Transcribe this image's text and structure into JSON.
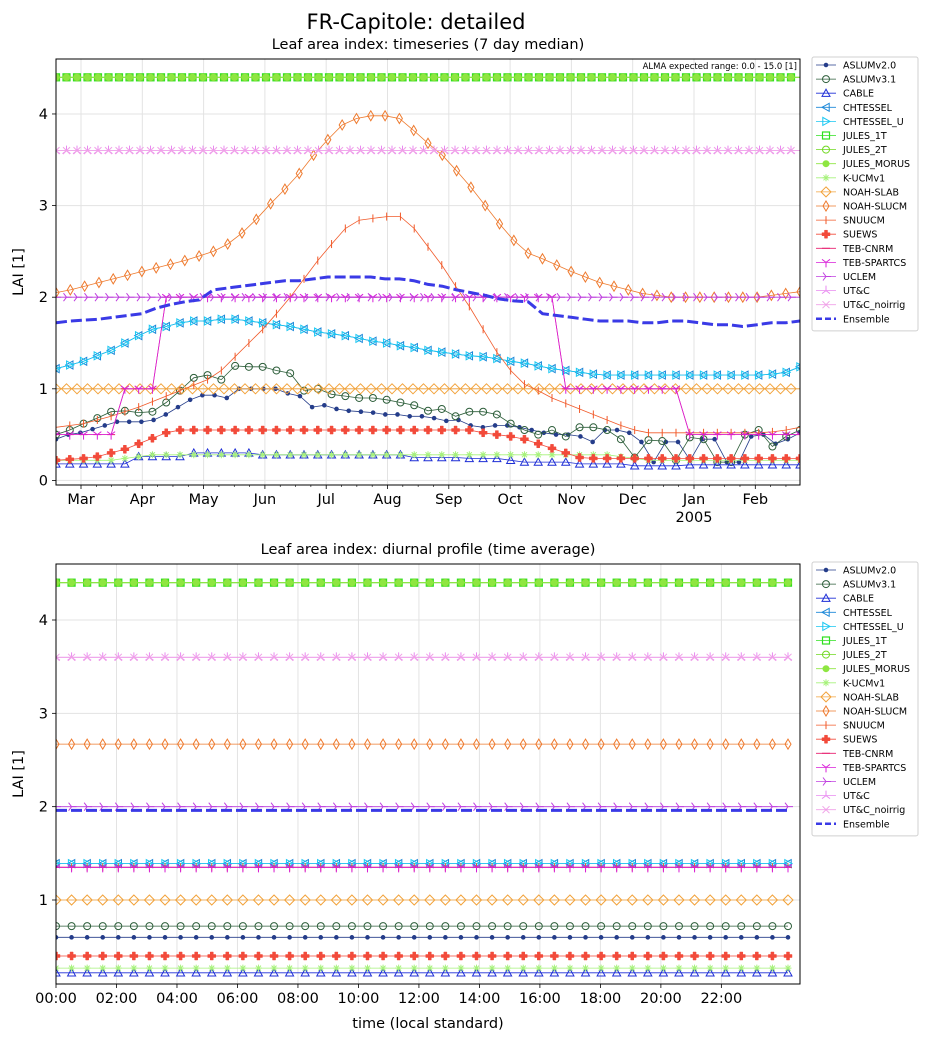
{
  "figure": {
    "suptitle": "FR-Capitole: detailed"
  },
  "chart_data": [
    {
      "type": "line",
      "title": "Leaf area index: timeseries (7 day median)",
      "ylabel": "LAI [1]",
      "xlabel": "",
      "annotation": "ALMA expected range: 0.0 - 15.0 [1]",
      "x_ticks": [
        "Mar",
        "Apr",
        "May",
        "Jun",
        "Jul",
        "Aug",
        "Sep",
        "Oct",
        "Nov",
        "Dec",
        "Jan",
        "Feb"
      ],
      "x_year_label": "2005",
      "y_ticks": [
        "0",
        "1",
        "2",
        "3",
        "4"
      ],
      "ylim": [
        -0.05,
        4.6
      ],
      "grid": true,
      "legend_position": "outside-right",
      "series": [
        {
          "name": "ASLUMv2.0",
          "color": "#253d8a",
          "marker": "dot",
          "values": [
            0.45,
            0.5,
            0.52,
            0.56,
            0.6,
            0.64,
            0.64,
            0.64,
            0.66,
            0.72,
            0.8,
            0.88,
            0.93,
            0.93,
            0.9,
            1.0,
            1.0,
            1.0,
            1.0,
            0.95,
            0.92,
            0.8,
            0.82,
            0.78,
            0.76,
            0.75,
            0.74,
            0.72,
            0.72,
            0.7,
            0.7,
            0.68,
            0.65,
            0.66,
            0.6,
            0.58,
            0.6,
            0.6,
            0.58,
            0.55,
            0.52,
            0.5,
            0.5,
            0.48,
            0.42,
            0.55,
            0.55,
            0.52,
            0.42,
            0.2,
            0.42,
            0.42,
            0.22,
            0.45,
            0.45,
            0.2,
            0.2,
            0.48,
            0.5,
            0.4,
            0.45,
            0.52
          ]
        },
        {
          "name": "ASLUMv3.1",
          "color": "#2d5e3a",
          "marker": "circle-open",
          "values": [
            0.5,
            0.55,
            0.62,
            0.68,
            0.75,
            0.76,
            0.74,
            0.75,
            0.85,
            0.98,
            1.12,
            1.15,
            1.1,
            1.25,
            1.24,
            1.24,
            1.2,
            1.17,
            0.98,
            1.0,
            0.94,
            0.92,
            0.9,
            0.9,
            0.88,
            0.85,
            0.82,
            0.76,
            0.78,
            0.7,
            0.75,
            0.75,
            0.72,
            0.62,
            0.55,
            0.5,
            0.55,
            0.48,
            0.58,
            0.58,
            0.55,
            0.45,
            0.25,
            0.44,
            0.43,
            0.22,
            0.47,
            0.45,
            0.2,
            0.2,
            0.5,
            0.55,
            0.37,
            0.48,
            0.55
          ]
        },
        {
          "name": "CABLE",
          "color": "#1f2fd6",
          "marker": "triangle-open",
          "values": [
            0.18,
            0.18,
            0.18,
            0.18,
            0.18,
            0.18,
            0.26,
            0.26,
            0.26,
            0.26,
            0.3,
            0.3,
            0.3,
            0.3,
            0.3,
            0.28,
            0.28,
            0.28,
            0.28,
            0.28,
            0.28,
            0.28,
            0.28,
            0.28,
            0.28,
            0.28,
            0.25,
            0.25,
            0.25,
            0.25,
            0.24,
            0.24,
            0.24,
            0.22,
            0.2,
            0.2,
            0.2,
            0.2,
            0.18,
            0.18,
            0.18,
            0.18,
            0.16,
            0.16,
            0.16,
            0.16,
            0.17,
            0.17,
            0.17,
            0.17,
            0.17,
            0.17,
            0.17,
            0.17,
            0.17
          ]
        },
        {
          "name": "CHTESSEL",
          "color": "#1a87d8",
          "marker": "triangle-left-open",
          "values": [
            1.22,
            1.26,
            1.3,
            1.36,
            1.42,
            1.5,
            1.58,
            1.65,
            1.68,
            1.72,
            1.74,
            1.74,
            1.76,
            1.76,
            1.74,
            1.72,
            1.7,
            1.68,
            1.65,
            1.62,
            1.6,
            1.58,
            1.55,
            1.52,
            1.5,
            1.47,
            1.45,
            1.42,
            1.4,
            1.38,
            1.36,
            1.35,
            1.33,
            1.3,
            1.28,
            1.25,
            1.22,
            1.2,
            1.18,
            1.16,
            1.15,
            1.15,
            1.15,
            1.15,
            1.15,
            1.15,
            1.15,
            1.15,
            1.15,
            1.15,
            1.15,
            1.15,
            1.16,
            1.18,
            1.24
          ]
        },
        {
          "name": "CHTESSEL_U",
          "color": "#19c7f2",
          "marker": "triangle-right-open",
          "values": [
            1.22,
            1.26,
            1.3,
            1.36,
            1.42,
            1.5,
            1.58,
            1.65,
            1.68,
            1.72,
            1.74,
            1.74,
            1.76,
            1.76,
            1.74,
            1.72,
            1.7,
            1.68,
            1.65,
            1.62,
            1.6,
            1.58,
            1.55,
            1.52,
            1.5,
            1.47,
            1.45,
            1.42,
            1.4,
            1.38,
            1.36,
            1.35,
            1.33,
            1.3,
            1.28,
            1.25,
            1.22,
            1.2,
            1.18,
            1.16,
            1.15,
            1.15,
            1.15,
            1.15,
            1.15,
            1.15,
            1.15,
            1.15,
            1.15,
            1.15,
            1.15,
            1.15,
            1.16,
            1.18,
            1.24
          ]
        },
        {
          "name": "JULES_1T",
          "color": "#2ee01f",
          "marker": "square-open",
          "values": [
            4.4,
            4.4,
            4.4,
            4.4,
            4.4,
            4.4,
            4.4,
            4.4,
            4.4,
            4.4,
            4.4,
            4.4
          ]
        },
        {
          "name": "JULES_2T",
          "color": "#6fd81f",
          "marker": "circle-open",
          "values": [
            4.4,
            4.4,
            4.4,
            4.4,
            4.4,
            4.4,
            4.4,
            4.4,
            4.4,
            4.4,
            4.4,
            4.4
          ]
        },
        {
          "name": "JULES_MORUS",
          "color": "#8ee641",
          "marker": "circle-filled",
          "values": [
            4.4,
            4.4,
            4.4,
            4.4,
            4.4,
            4.4,
            4.4,
            4.4,
            4.4,
            4.4,
            4.4,
            4.4
          ]
        },
        {
          "name": "K-UCMv1",
          "color": "#a6f27a",
          "marker": "star",
          "values": [
            0.22,
            0.22,
            0.22,
            0.22,
            0.22,
            0.24,
            0.26,
            0.28,
            0.28,
            0.28,
            0.28,
            0.28,
            0.28,
            0.28,
            0.28,
            0.28,
            0.28,
            0.28,
            0.28,
            0.28,
            0.28,
            0.28,
            0.28,
            0.28,
            0.28,
            0.28,
            0.28,
            0.28,
            0.28,
            0.28,
            0.28,
            0.28,
            0.28,
            0.28,
            0.28,
            0.28,
            0.28,
            0.28,
            0.28,
            0.28,
            0.28,
            0.26,
            0.24,
            0.22,
            0.22,
            0.22,
            0.22,
            0.22,
            0.22,
            0.22,
            0.22,
            0.22,
            0.22,
            0.22,
            0.22
          ]
        },
        {
          "name": "NOAH-SLAB",
          "color": "#f2a23a",
          "marker": "diamond-open",
          "values": [
            1.0,
            1.0,
            1.0,
            1.0,
            1.0,
            1.0,
            1.0,
            1.0,
            1.0,
            1.0,
            1.0,
            1.0
          ]
        },
        {
          "name": "NOAH-SLUCM",
          "color": "#ee7a2e",
          "marker": "thin-diamond-open",
          "values": [
            2.05,
            2.08,
            2.12,
            2.16,
            2.2,
            2.24,
            2.28,
            2.32,
            2.36,
            2.4,
            2.45,
            2.5,
            2.58,
            2.7,
            2.85,
            3.02,
            3.18,
            3.35,
            3.55,
            3.72,
            3.88,
            3.95,
            3.98,
            3.98,
            3.95,
            3.82,
            3.68,
            3.55,
            3.38,
            3.2,
            3.0,
            2.8,
            2.62,
            2.48,
            2.42,
            2.35,
            2.28,
            2.22,
            2.16,
            2.12,
            2.08,
            2.04,
            2.02,
            2.0,
            2.0,
            2.0,
            2.0,
            2.0,
            2.0,
            2.0,
            2.02,
            2.04,
            2.06
          ]
        },
        {
          "name": "SNUUCM",
          "color": "#f15a2a",
          "marker": "vline",
          "values": [
            0.58,
            0.6,
            0.62,
            0.66,
            0.7,
            0.75,
            0.8,
            0.86,
            0.92,
            0.98,
            1.04,
            1.1,
            1.2,
            1.35,
            1.5,
            1.65,
            1.82,
            2.0,
            2.2,
            2.4,
            2.58,
            2.75,
            2.84,
            2.86,
            2.88,
            2.88,
            2.75,
            2.55,
            2.35,
            2.12,
            1.9,
            1.65,
            1.4,
            1.2,
            1.05,
            0.98,
            0.9,
            0.84,
            0.78,
            0.72,
            0.66,
            0.6,
            0.55,
            0.52,
            0.52,
            0.52,
            0.52,
            0.52,
            0.52,
            0.52,
            0.52,
            0.52,
            0.53,
            0.55,
            0.58
          ]
        },
        {
          "name": "SUEWS",
          "color": "#f24a3a",
          "marker": "plus-filled",
          "values": [
            0.22,
            0.23,
            0.24,
            0.26,
            0.3,
            0.34,
            0.4,
            0.46,
            0.52,
            0.55,
            0.55,
            0.55,
            0.55,
            0.55,
            0.55,
            0.55,
            0.55,
            0.55,
            0.55,
            0.55,
            0.55,
            0.55,
            0.55,
            0.55,
            0.55,
            0.55,
            0.55,
            0.55,
            0.55,
            0.55,
            0.55,
            0.52,
            0.5,
            0.48,
            0.45,
            0.4,
            0.35,
            0.3,
            0.25,
            0.24,
            0.24,
            0.24,
            0.24,
            0.24,
            0.24,
            0.24,
            0.24,
            0.24,
            0.24,
            0.24,
            0.24,
            0.24,
            0.24,
            0.24,
            0.24
          ]
        },
        {
          "name": "TEB-CNRM",
          "color": "#e81f6f",
          "marker": "hline",
          "values": [
            0.5,
            0.5,
            0.5,
            0.5,
            0.5,
            1.0,
            1.0,
            1.0,
            2.0,
            2.0,
            2.0,
            2.0,
            2.0,
            2.0,
            2.0,
            2.0,
            2.0,
            2.0,
            2.0,
            2.0,
            2.0,
            2.0,
            2.0,
            2.0,
            2.0,
            2.0,
            2.0,
            2.0,
            2.0,
            2.0,
            2.0,
            2.0,
            2.0,
            2.0,
            2.0,
            2.0,
            2.0,
            1.0,
            1.0,
            1.0,
            1.0,
            1.0,
            1.0,
            1.0,
            1.0,
            1.0,
            0.5,
            0.5,
            0.5,
            0.5,
            0.5,
            0.5,
            0.5,
            0.5,
            0.5
          ]
        },
        {
          "name": "TEB-SPARTCS",
          "color": "#d81fd8",
          "marker": "tri-down",
          "values": [
            0.5,
            0.5,
            0.5,
            0.5,
            0.5,
            1.0,
            1.0,
            1.0,
            2.0,
            2.0,
            2.0,
            2.0,
            2.0,
            2.0,
            2.0,
            2.0,
            2.0,
            2.0,
            2.0,
            2.0,
            2.0,
            2.0,
            2.0,
            2.0,
            2.0,
            2.0,
            2.0,
            2.0,
            2.0,
            2.0,
            2.0,
            2.0,
            2.0,
            2.0,
            2.0,
            2.0,
            2.0,
            1.0,
            1.0,
            1.0,
            1.0,
            1.0,
            1.0,
            1.0,
            1.0,
            1.0,
            0.5,
            0.5,
            0.5,
            0.5,
            0.5,
            0.5,
            0.5,
            0.5,
            0.5
          ]
        },
        {
          "name": "UCLEM",
          "color": "#c040e0",
          "marker": "tri-right",
          "values": [
            2.0,
            2.0,
            2.0,
            2.0,
            2.0,
            2.0,
            2.0,
            2.0,
            2.0,
            2.0,
            2.0,
            2.0
          ]
        },
        {
          "name": "UT&C",
          "color": "#e88af0",
          "marker": "tri-up",
          "values": [
            3.6,
            3.6,
            3.6,
            3.6,
            3.6,
            3.6,
            3.6,
            3.6,
            3.6,
            3.6,
            3.6,
            3.6
          ]
        },
        {
          "name": "UT&C_noirrig",
          "color": "#f0a0e8",
          "marker": "x",
          "values": [
            3.6,
            3.6,
            3.6,
            3.6,
            3.6,
            3.6,
            3.6,
            3.6,
            3.6,
            3.6,
            3.6,
            3.6
          ]
        },
        {
          "name": "Ensemble",
          "color": "#3a3ae6",
          "marker": "dashed",
          "values": [
            1.72,
            1.74,
            1.75,
            1.76,
            1.78,
            1.8,
            1.82,
            1.88,
            1.92,
            1.95,
            1.97,
            2.08,
            2.1,
            2.12,
            2.14,
            2.16,
            2.18,
            2.18,
            2.2,
            2.22,
            2.22,
            2.22,
            2.22,
            2.2,
            2.2,
            2.18,
            2.14,
            2.12,
            2.08,
            2.05,
            2.02,
            1.98,
            1.96,
            1.95,
            1.82,
            1.8,
            1.78,
            1.76,
            1.74,
            1.74,
            1.74,
            1.72,
            1.72,
            1.74,
            1.74,
            1.72,
            1.7,
            1.7,
            1.68,
            1.7,
            1.72,
            1.72,
            1.74
          ]
        }
      ]
    },
    {
      "type": "line",
      "title": "Leaf area index: diurnal profile (time average)",
      "xlabel": "time (local standard)",
      "ylabel": "LAI [1]",
      "x_ticks": [
        "00:00",
        "02:00",
        "04:00",
        "06:00",
        "08:00",
        "10:00",
        "12:00",
        "14:00",
        "16:00",
        "18:00",
        "20:00",
        "22:00"
      ],
      "y_ticks": [
        "1",
        "2",
        "3",
        "4"
      ],
      "ylim": [
        0.1,
        4.6
      ],
      "grid": true,
      "legend_position": "outside-right",
      "series": [
        {
          "name": "ASLUMv2.0",
          "color": "#253d8a",
          "marker": "dot",
          "value": 0.6
        },
        {
          "name": "ASLUMv3.1",
          "color": "#2d5e3a",
          "marker": "circle-open",
          "value": 0.72
        },
        {
          "name": "CABLE",
          "color": "#1f2fd6",
          "marker": "triangle-open",
          "value": 0.22
        },
        {
          "name": "CHTESSEL",
          "color": "#1a87d8",
          "marker": "triangle-left-open",
          "value": 1.39
        },
        {
          "name": "CHTESSEL_U",
          "color": "#19c7f2",
          "marker": "triangle-right-open",
          "value": 1.39
        },
        {
          "name": "JULES_1T",
          "color": "#2ee01f",
          "marker": "square-open",
          "value": 4.4
        },
        {
          "name": "JULES_2T",
          "color": "#6fd81f",
          "marker": "circle-open",
          "value": 4.4
        },
        {
          "name": "JULES_MORUS",
          "color": "#8ee641",
          "marker": "circle-filled",
          "value": 4.4
        },
        {
          "name": "K-UCMv1",
          "color": "#a6f27a",
          "marker": "star",
          "value": 0.27
        },
        {
          "name": "NOAH-SLAB",
          "color": "#f2a23a",
          "marker": "diamond-open",
          "value": 1.0
        },
        {
          "name": "NOAH-SLUCM",
          "color": "#ee7a2e",
          "marker": "thin-diamond-open",
          "value": 2.67
        },
        {
          "name": "SNUUCM",
          "color": "#f15a2a",
          "marker": "vline",
          "value": 1.35
        },
        {
          "name": "SUEWS",
          "color": "#f24a3a",
          "marker": "plus-filled",
          "value": 0.4
        },
        {
          "name": "TEB-CNRM",
          "color": "#e81f6f",
          "marker": "hline",
          "value": 1.35
        },
        {
          "name": "TEB-SPARTCS",
          "color": "#d81fd8",
          "marker": "tri-down",
          "value": 1.35
        },
        {
          "name": "UCLEM",
          "color": "#c040e0",
          "marker": "tri-right",
          "value": 2.0
        },
        {
          "name": "UT&C",
          "color": "#e88af0",
          "marker": "tri-up",
          "value": 3.6
        },
        {
          "name": "UT&C_noirrig",
          "color": "#f0a0e8",
          "marker": "x",
          "value": 3.6
        },
        {
          "name": "Ensemble",
          "color": "#3a3ae6",
          "marker": "dashed",
          "value": 1.96
        }
      ]
    }
  ]
}
